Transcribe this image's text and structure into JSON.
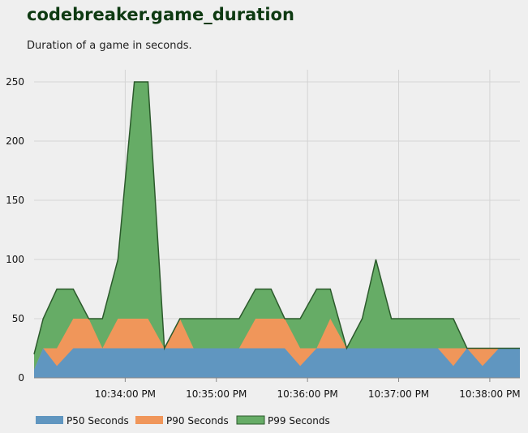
{
  "header": {
    "title": "codebreaker.game_duration",
    "subtitle": "Duration of a game in seconds."
  },
  "chart_data": {
    "type": "area",
    "title": "codebreaker.game_duration",
    "subtitle": "Duration of a game in seconds.",
    "xlabel": "",
    "ylabel": "",
    "x_ticks": [
      "10:34:00 PM",
      "10:35:00 PM",
      "10:36:00 PM",
      "10:37:00 PM",
      "10:38:00 PM"
    ],
    "x_tick_minutes": [
      34,
      35,
      36,
      37,
      38
    ],
    "x_range_minutes": [
      33.0,
      38.33
    ],
    "y_ticks": [
      0,
      50,
      100,
      150,
      200,
      250
    ],
    "ylim": [
      0,
      250
    ],
    "grid": true,
    "legend_position": "bottom-left",
    "x_minutes": [
      33.0,
      33.1,
      33.25,
      33.43,
      33.6,
      33.75,
      33.92,
      34.1,
      34.25,
      34.43,
      34.6,
      34.75,
      34.92,
      35.1,
      35.25,
      35.43,
      35.6,
      35.75,
      35.92,
      36.1,
      36.25,
      36.43,
      36.6,
      36.75,
      36.92,
      37.1,
      37.25,
      37.43,
      37.6,
      37.75,
      37.92,
      38.1,
      38.33
    ],
    "series": [
      {
        "name": "P50 Seconds",
        "color": "#6096c0",
        "values": [
          7,
          25,
          10,
          25,
          25,
          25,
          25,
          25,
          25,
          25,
          25,
          25,
          25,
          25,
          25,
          25,
          25,
          25,
          10,
          25,
          25,
          25,
          25,
          25,
          25,
          25,
          25,
          25,
          10,
          25,
          10,
          25,
          25
        ]
      },
      {
        "name": "P90 Seconds",
        "color": "#f0965a",
        "values": [
          7,
          25,
          25,
          50,
          50,
          25,
          50,
          50,
          50,
          25,
          50,
          25,
          25,
          25,
          25,
          50,
          50,
          50,
          25,
          25,
          50,
          25,
          25,
          25,
          25,
          25,
          25,
          25,
          25,
          25,
          25,
          25,
          25
        ]
      },
      {
        "name": "P99 Seconds",
        "color": "#66ac66",
        "values": [
          20,
          50,
          75,
          75,
          50,
          50,
          100,
          250,
          250,
          25,
          50,
          50,
          50,
          50,
          50,
          75,
          75,
          50,
          50,
          75,
          75,
          25,
          50,
          100,
          50,
          50,
          50,
          50,
          50,
          25,
          25,
          25,
          25
        ]
      }
    ]
  }
}
